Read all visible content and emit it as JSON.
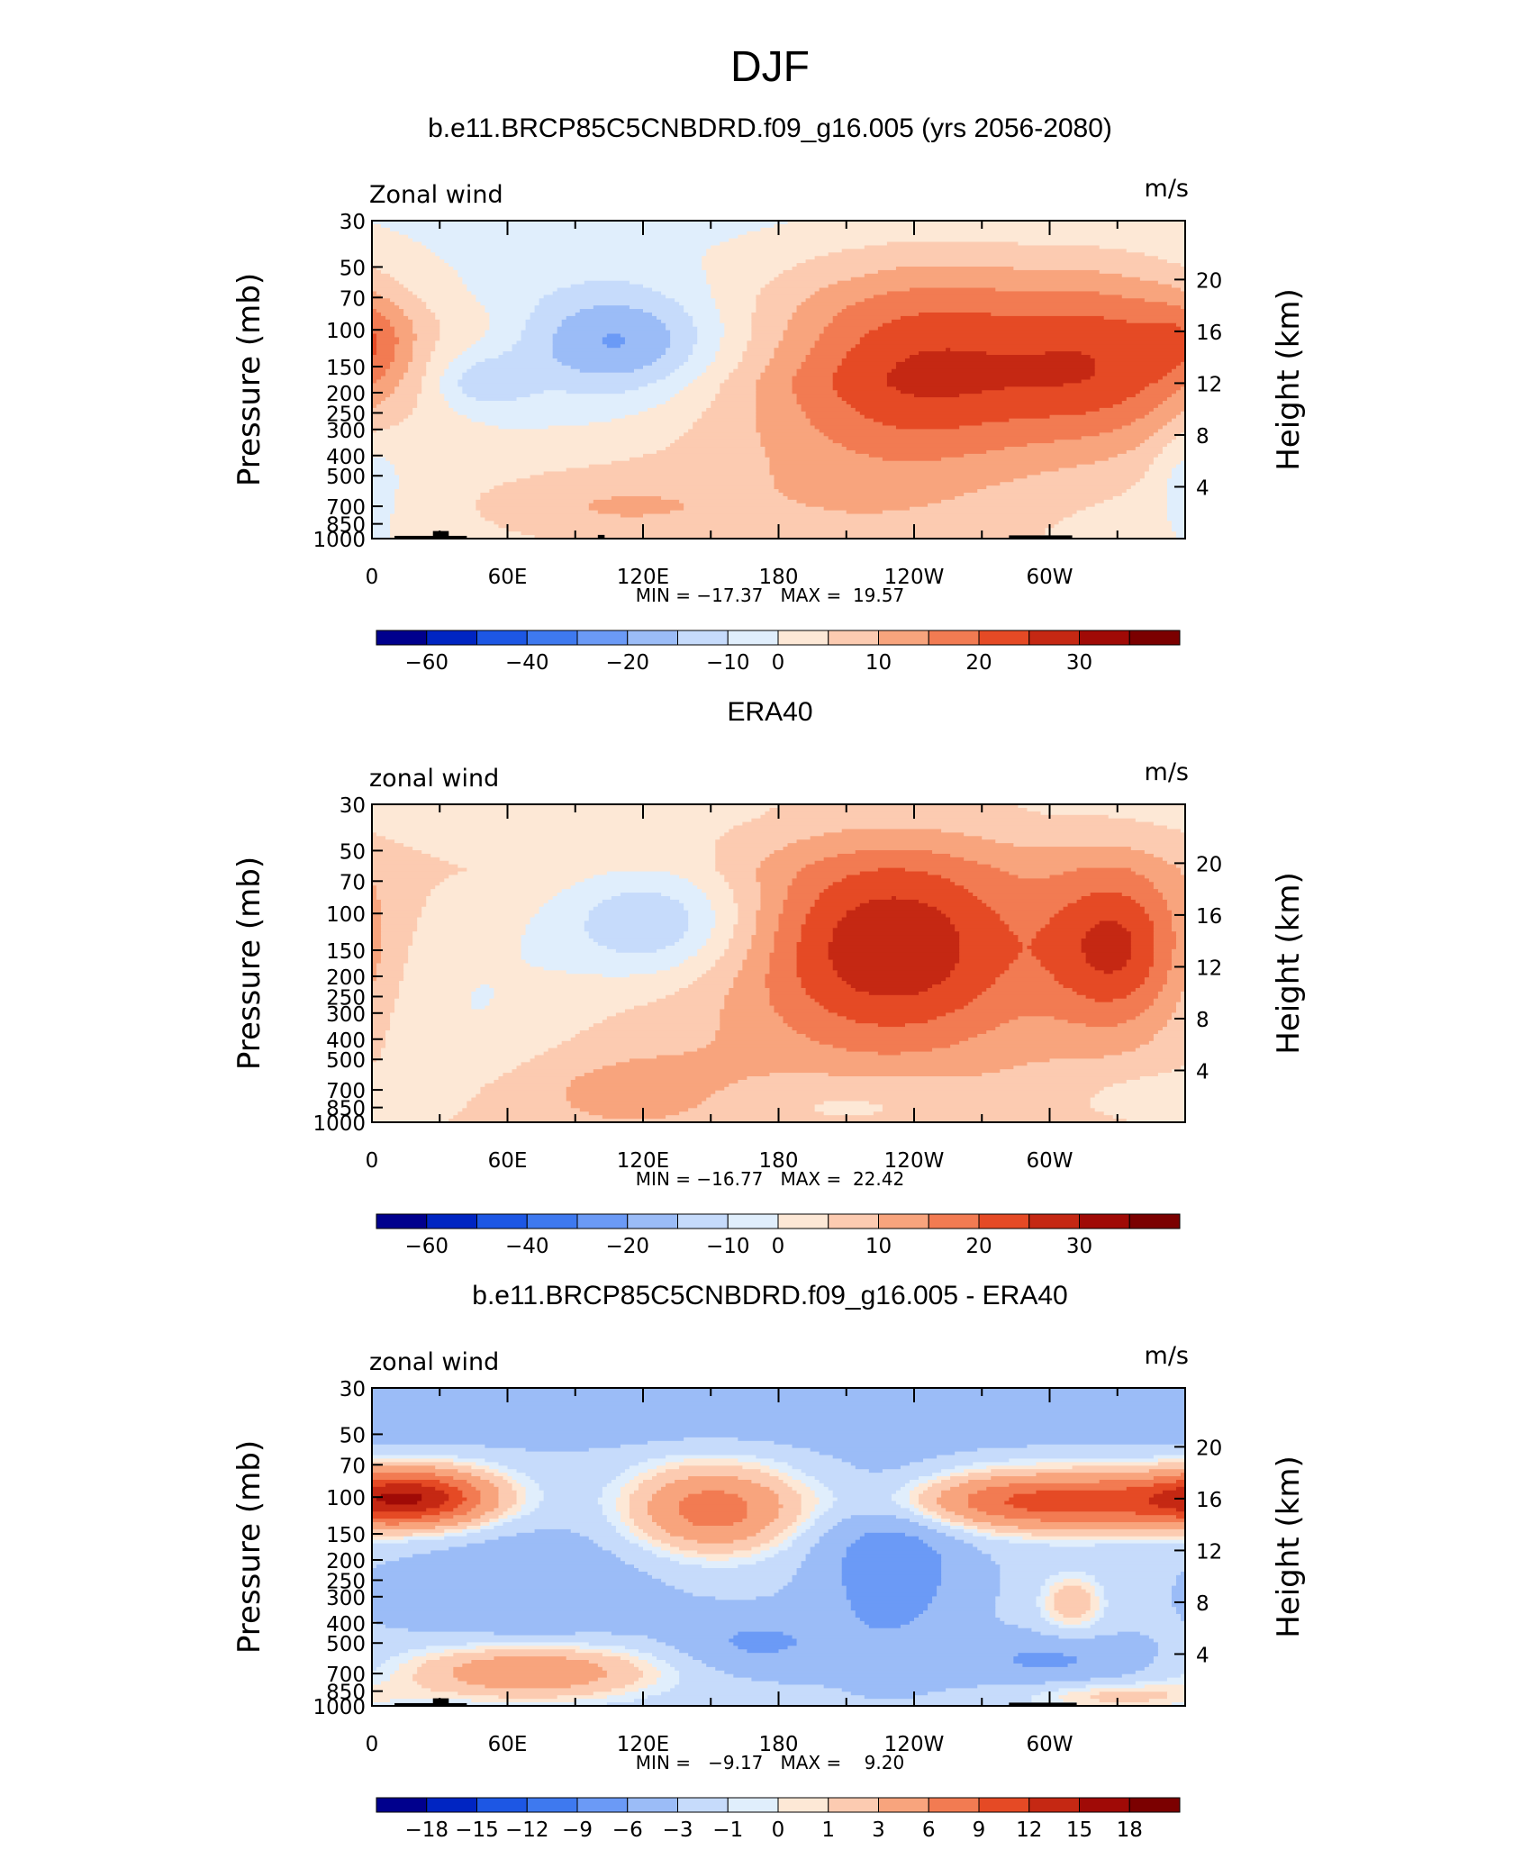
{
  "page": {
    "title": "DJF"
  },
  "chart_data": [
    {
      "type": "heatmap",
      "title": "b.e11.BRCP85C5CNBDRD.f09_g16.005 (yrs 2056-2080)",
      "left_label": "Zonal wind",
      "units": "m/s",
      "ylabel": "Pressure (mb)",
      "ylabel_right": "Height (km)",
      "yticks": [
        "30",
        "50",
        "70",
        "100",
        "150",
        "200",
        "250",
        "300",
        "400",
        "500",
        "700",
        "850",
        "1000"
      ],
      "ytick_values": [
        30,
        50,
        70,
        100,
        150,
        200,
        250,
        300,
        400,
        500,
        700,
        850,
        1000
      ],
      "yticks_right": [
        "20",
        "16",
        "12",
        "8",
        "4"
      ],
      "ytick_right_values": [
        20,
        16,
        12,
        8,
        4
      ],
      "xticks": [
        "0",
        "60E",
        "120E",
        "180",
        "120W",
        "60W"
      ],
      "xtick_values": [
        0,
        60,
        120,
        180,
        240,
        300
      ],
      "xlim": [
        0,
        360
      ],
      "ylim": [
        1000,
        30
      ],
      "minmax": "MIN = −17.37   MAX =  19.57",
      "min": -17.37,
      "max": 19.57,
      "colorbar_labels": [
        "−60",
        "−40",
        "−20",
        "−10",
        "0",
        "10",
        "20",
        "30"
      ],
      "colorbar_label_bounds": [
        1,
        3,
        5,
        7,
        8,
        10,
        12,
        14
      ],
      "colorbar_levels": [
        -70,
        -60,
        -50,
        -40,
        -30,
        -20,
        -15,
        -10,
        -5,
        0,
        5,
        10,
        15,
        20,
        25,
        30,
        35
      ],
      "features": [
        {
          "kind": "blob",
          "lon": 0,
          "p": 110,
          "dlon": 14,
          "dlogp": 0.14,
          "amp": 7.5
        },
        {
          "kind": "blob",
          "lon": 45,
          "p": 95,
          "dlon": 22,
          "dlogp": 0.08,
          "amp": 2.5
        },
        {
          "kind": "blob",
          "lon": 110,
          "p": 115,
          "dlon": 32,
          "dlogp": 0.2,
          "amp": -17
        },
        {
          "kind": "blob",
          "lon": 50,
          "p": 180,
          "dlon": 14,
          "dlogp": 0.08,
          "amp": -9
        },
        {
          "kind": "blob",
          "lon": 245,
          "p": 140,
          "dlon": 46,
          "dlogp": 0.35,
          "amp": 19
        },
        {
          "kind": "blob",
          "lon": 330,
          "p": 140,
          "dlon": 36,
          "dlogp": 0.32,
          "amp": 19
        },
        {
          "kind": "blob",
          "lon": 90,
          "p": 700,
          "dlon": 48,
          "dlogp": 0.14,
          "amp": 8
        },
        {
          "kind": "blob",
          "lon": 210,
          "p": 60,
          "dlon": 100,
          "dlogp": 0.16,
          "amp": 4
        },
        {
          "kind": "blob",
          "lon": 360,
          "p": 500,
          "dlon": 10,
          "dlogp": 0.18,
          "amp": -6
        }
      ],
      "base_field": {
        "kind": "base",
        "p_top": 50,
        "top_value": -7,
        "mid_value": -7,
        "lon_shift": 210,
        "lon_width": 85,
        "shift_amount": 10
      },
      "topography": [
        {
          "lon_start": 10,
          "lon_end": 42,
          "top_p": 970
        },
        {
          "lon_start": 27,
          "lon_end": 34,
          "top_p": 920
        },
        {
          "lon_start": 100,
          "lon_end": 103,
          "top_p": 960
        },
        {
          "lon_start": 282,
          "lon_end": 310,
          "top_p": 965
        }
      ]
    },
    {
      "type": "heatmap",
      "title": "ERA40",
      "left_label": "zonal wind",
      "units": "m/s",
      "ylabel": "Pressure (mb)",
      "ylabel_right": "Height (km)",
      "yticks": [
        "30",
        "50",
        "70",
        "100",
        "150",
        "200",
        "250",
        "300",
        "400",
        "500",
        "700",
        "850",
        "1000"
      ],
      "ytick_values": [
        30,
        50,
        70,
        100,
        150,
        200,
        250,
        300,
        400,
        500,
        700,
        850,
        1000
      ],
      "yticks_right": [
        "20",
        "16",
        "12",
        "8",
        "4"
      ],
      "ytick_right_values": [
        20,
        16,
        12,
        8,
        4
      ],
      "xticks": [
        "0",
        "60E",
        "120E",
        "180",
        "120W",
        "60W"
      ],
      "xtick_values": [
        0,
        60,
        120,
        180,
        240,
        300
      ],
      "xlim": [
        0,
        360
      ],
      "ylim": [
        1000,
        30
      ],
      "minmax": "MIN = −16.77   MAX =  22.42",
      "min": -16.77,
      "max": 22.42,
      "colorbar_labels": [
        "−60",
        "−40",
        "−20",
        "−10",
        "0",
        "10",
        "20",
        "30"
      ],
      "colorbar_label_bounds": [
        1,
        3,
        5,
        7,
        8,
        10,
        12,
        14
      ],
      "colorbar_levels": [
        -70,
        -60,
        -50,
        -40,
        -30,
        -20,
        -15,
        -10,
        -5,
        0,
        5,
        10,
        15,
        20,
        25,
        30,
        35
      ],
      "features": [
        {
          "kind": "blob",
          "lon": 125,
          "p": 110,
          "dlon": 32,
          "dlogp": 0.2,
          "amp": -16.8
        },
        {
          "kind": "blob",
          "lon": 230,
          "p": 145,
          "dlon": 46,
          "dlogp": 0.36,
          "amp": 22.4
        },
        {
          "kind": "blob",
          "lon": 330,
          "p": 145,
          "dlon": 22,
          "dlogp": 0.28,
          "amp": 18
        },
        {
          "kind": "blob",
          "lon": 110,
          "p": 700,
          "dlon": 45,
          "dlogp": 0.14,
          "amp": 6
        },
        {
          "kind": "blob",
          "lon": 45,
          "p": 280,
          "dlon": 35,
          "dlogp": 0.4,
          "amp": -7
        },
        {
          "kind": "blob",
          "lon": 210,
          "p": 800,
          "dlon": 40,
          "dlogp": 0.1,
          "amp": -5
        },
        {
          "kind": "blob",
          "lon": 340,
          "p": 750,
          "dlon": 25,
          "dlogp": 0.1,
          "amp": -4
        }
      ],
      "base_field": {
        "kind": "base",
        "p_top": 35,
        "top_value": -2,
        "mid_value": 2,
        "lon_shift": 0,
        "lon_width": 1,
        "shift_amount": 0
      },
      "topography": []
    },
    {
      "type": "heatmap",
      "title": "b.e11.BRCP85C5CNBDRD.f09_g16.005 - ERA40",
      "left_label": "zonal wind",
      "units": "m/s",
      "ylabel": "Pressure (mb)",
      "ylabel_right": "Height (km)",
      "yticks": [
        "30",
        "50",
        "70",
        "100",
        "150",
        "200",
        "250",
        "300",
        "400",
        "500",
        "700",
        "850",
        "1000"
      ],
      "ytick_values": [
        30,
        50,
        70,
        100,
        150,
        200,
        250,
        300,
        400,
        500,
        700,
        850,
        1000
      ],
      "yticks_right": [
        "20",
        "16",
        "12",
        "8",
        "4"
      ],
      "ytick_right_values": [
        20,
        16,
        12,
        8,
        4
      ],
      "xticks": [
        "0",
        "60E",
        "120E",
        "180",
        "120W",
        "60W"
      ],
      "xtick_values": [
        0,
        60,
        120,
        180,
        240,
        300
      ],
      "xlim": [
        0,
        360
      ],
      "ylim": [
        1000,
        30
      ],
      "minmax": "MIN =   −9.17   MAX =    9.20",
      "min": -9.17,
      "max": 9.2,
      "colorbar_labels": [
        "−18",
        "−15",
        "−12",
        "−9",
        "−6",
        "−3",
        "−1",
        "0",
        "1",
        "3",
        "6",
        "9",
        "12",
        "15",
        "18"
      ],
      "colorbar_label_bounds": [
        1,
        2,
        3,
        4,
        5,
        6,
        7,
        8,
        9,
        10,
        11,
        12,
        13,
        14,
        15
      ],
      "colorbar_levels": [
        -21,
        -18,
        -15,
        -12,
        -9,
        -6,
        -3,
        -1,
        0,
        1,
        3,
        6,
        9,
        12,
        15,
        18,
        21
      ],
      "features": [
        {
          "kind": "blob",
          "lon": 20,
          "p": 100,
          "dlon": 25,
          "dlogp": 0.1,
          "amp": 13
        },
        {
          "kind": "blob",
          "lon": 150,
          "p": 115,
          "dlon": 26,
          "dlogp": 0.15,
          "amp": 10
        },
        {
          "kind": "blob",
          "lon": 305,
          "p": 105,
          "dlon": 55,
          "dlogp": 0.1,
          "amp": 13
        },
        {
          "kind": "blob",
          "lon": 230,
          "p": 200,
          "dlon": 22,
          "dlogp": 0.3,
          "amp": -6
        },
        {
          "kind": "blob",
          "lon": 70,
          "p": 680,
          "dlon": 40,
          "dlogp": 0.1,
          "amp": 9
        },
        {
          "kind": "blob",
          "lon": 310,
          "p": 320,
          "dlon": 10,
          "dlogp": 0.1,
          "amp": 5
        },
        {
          "kind": "blob",
          "lon": 170,
          "p": 500,
          "dlon": 25,
          "dlogp": 0.1,
          "amp": -4
        },
        {
          "kind": "blob",
          "lon": 300,
          "p": 600,
          "dlon": 30,
          "dlogp": 0.08,
          "amp": -4
        },
        {
          "kind": "blob",
          "lon": 70,
          "p": 300,
          "dlon": 40,
          "dlogp": 0.25,
          "amp": -3
        },
        {
          "kind": "blob",
          "lon": 330,
          "p": 900,
          "dlon": 30,
          "dlogp": 0.05,
          "amp": 4
        }
      ],
      "base_field": {
        "kind": "base",
        "p_top": 40,
        "top_value": -5,
        "mid_value": -2.5,
        "lon_shift": 0,
        "lon_width": 1,
        "shift_amount": 0
      },
      "topography": [
        {
          "lon_start": 10,
          "lon_end": 42,
          "top_p": 970
        },
        {
          "lon_start": 27,
          "lon_end": 34,
          "top_p": 920
        },
        {
          "lon_start": 282,
          "lon_end": 312,
          "top_p": 965
        }
      ]
    }
  ],
  "colors": {
    "palette": [
      "#00008d",
      "#0025c2",
      "#1d57e4",
      "#3e79ef",
      "#6b9af6",
      "#9bbcf7",
      "#c6dbfb",
      "#e0eefc",
      "#fde8d6",
      "#fccbb1",
      "#f8a47d",
      "#f27b52",
      "#e54a25",
      "#c52813",
      "#a00a06",
      "#7b0000"
    ],
    "frame": "#000000"
  }
}
